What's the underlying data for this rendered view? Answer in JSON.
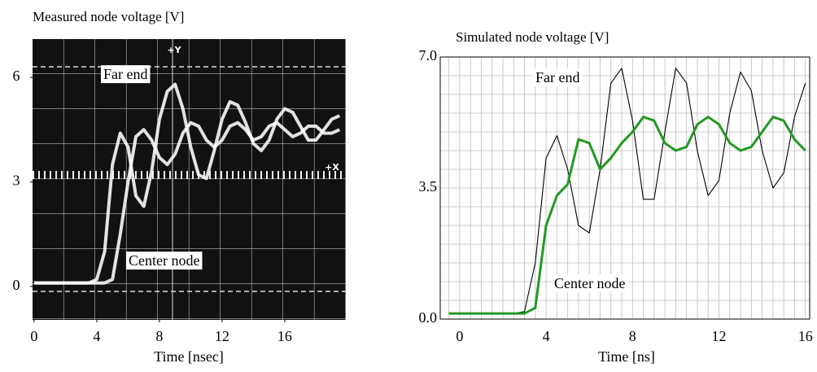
{
  "chart_data": [
    {
      "type": "line",
      "title": "Measured node voltage [V]",
      "xlabel": "Time [nsec]",
      "annotations": [
        "+Y",
        "+X"
      ],
      "x": [
        0,
        0.5,
        1,
        1.5,
        2,
        2.5,
        3,
        3.5,
        4,
        4.5,
        5,
        5.5,
        6,
        6.5,
        7,
        7.5,
        8,
        8.5,
        9,
        9.5,
        10,
        10.5,
        11,
        11.5,
        12,
        12.5,
        13,
        13.5,
        14,
        14.5,
        15,
        15.5,
        16,
        16.5,
        17,
        17.5,
        18,
        18.5,
        19,
        19.5
      ],
      "series": [
        {
          "name": "Far end",
          "color": "#ffffff",
          "values": [
            0.1,
            0.1,
            0.1,
            0.1,
            0.1,
            0.1,
            0.1,
            0.1,
            0.2,
            1.0,
            3.5,
            4.4,
            4.0,
            2.6,
            2.3,
            3.3,
            4.8,
            5.6,
            5.8,
            5.1,
            4.0,
            3.2,
            3.1,
            3.9,
            4.8,
            5.3,
            5.2,
            4.7,
            4.1,
            3.9,
            4.2,
            4.8,
            5.1,
            5.0,
            4.6,
            4.2,
            4.2,
            4.5,
            4.8,
            4.9
          ]
        },
        {
          "name": "Center node",
          "color": "#ffffff",
          "values": [
            0.1,
            0.1,
            0.1,
            0.1,
            0.1,
            0.1,
            0.1,
            0.1,
            0.1,
            0.1,
            0.2,
            1.5,
            3.0,
            4.3,
            4.5,
            4.2,
            3.7,
            3.5,
            3.8,
            4.4,
            4.7,
            4.6,
            4.2,
            4.0,
            4.2,
            4.6,
            4.7,
            4.5,
            4.2,
            4.3,
            4.6,
            4.7,
            4.5,
            4.3,
            4.4,
            4.6,
            4.6,
            4.4,
            4.4,
            4.5
          ]
        }
      ],
      "xlim": [
        -0.1,
        19.9
      ],
      "ylim": [
        -0.96,
        7.1
      ],
      "xticks": [
        0,
        4,
        8,
        12,
        16
      ],
      "yticks": [
        0,
        3,
        6
      ]
    },
    {
      "type": "line",
      "title": "Simulated node voltage [V]",
      "xlabel": "Time [ns]",
      "x": [
        -0.5,
        0,
        0.5,
        1,
        1.5,
        2,
        2.5,
        3,
        3.5,
        4,
        4.5,
        5,
        5.5,
        6,
        6.5,
        7,
        7.5,
        8,
        8.5,
        9,
        9.5,
        10,
        10.5,
        11,
        11.5,
        12,
        12.5,
        13,
        13.5,
        14,
        14.5,
        15,
        15.5,
        16
      ],
      "series": [
        {
          "name": "Far end",
          "color": "#000000",
          "values": [
            0.15,
            0.15,
            0.15,
            0.15,
            0.15,
            0.15,
            0.15,
            0.2,
            1.5,
            4.3,
            4.9,
            4.0,
            2.5,
            2.3,
            4.0,
            6.3,
            6.7,
            5.3,
            3.2,
            3.2,
            5.0,
            6.7,
            6.3,
            4.5,
            3.3,
            3.7,
            5.5,
            6.6,
            6.1,
            4.5,
            3.5,
            3.9,
            5.4,
            6.3
          ]
        },
        {
          "name": "Center node",
          "color": "#229922",
          "values": [
            0.15,
            0.15,
            0.15,
            0.15,
            0.15,
            0.15,
            0.15,
            0.15,
            0.3,
            2.5,
            3.3,
            3.6,
            4.8,
            4.7,
            4.0,
            4.3,
            4.7,
            5.0,
            5.4,
            5.3,
            4.7,
            4.5,
            4.6,
            5.2,
            5.4,
            5.2,
            4.7,
            4.5,
            4.6,
            5.0,
            5.4,
            5.3,
            4.8,
            4.5
          ]
        }
      ],
      "xlim": [
        -0.9,
        16.2
      ],
      "ylim": [
        0,
        7
      ],
      "xticks": [
        0,
        4,
        8,
        12,
        16
      ],
      "yticks": [
        {
          "value": 0,
          "label": "0.0"
        },
        {
          "value": 3.5,
          "label": "3.5"
        },
        {
          "value": 7,
          "label": "7.0"
        }
      ],
      "minor_xticks": [
        -0.5,
        0.5,
        1,
        1.5,
        2,
        2.5,
        3,
        3.5,
        4.5,
        5,
        5.5,
        6,
        6.5,
        7,
        7.5,
        8.5,
        9,
        9.5,
        10,
        10.5,
        11,
        11.5,
        12.5,
        13,
        13.5,
        14,
        14.5,
        15,
        15.5
      ],
      "minor_yticks": [
        0.5,
        1,
        1.5,
        2,
        2.5,
        3,
        4,
        4.5,
        5,
        5.5,
        6,
        6.5
      ],
      "grid": true
    }
  ]
}
